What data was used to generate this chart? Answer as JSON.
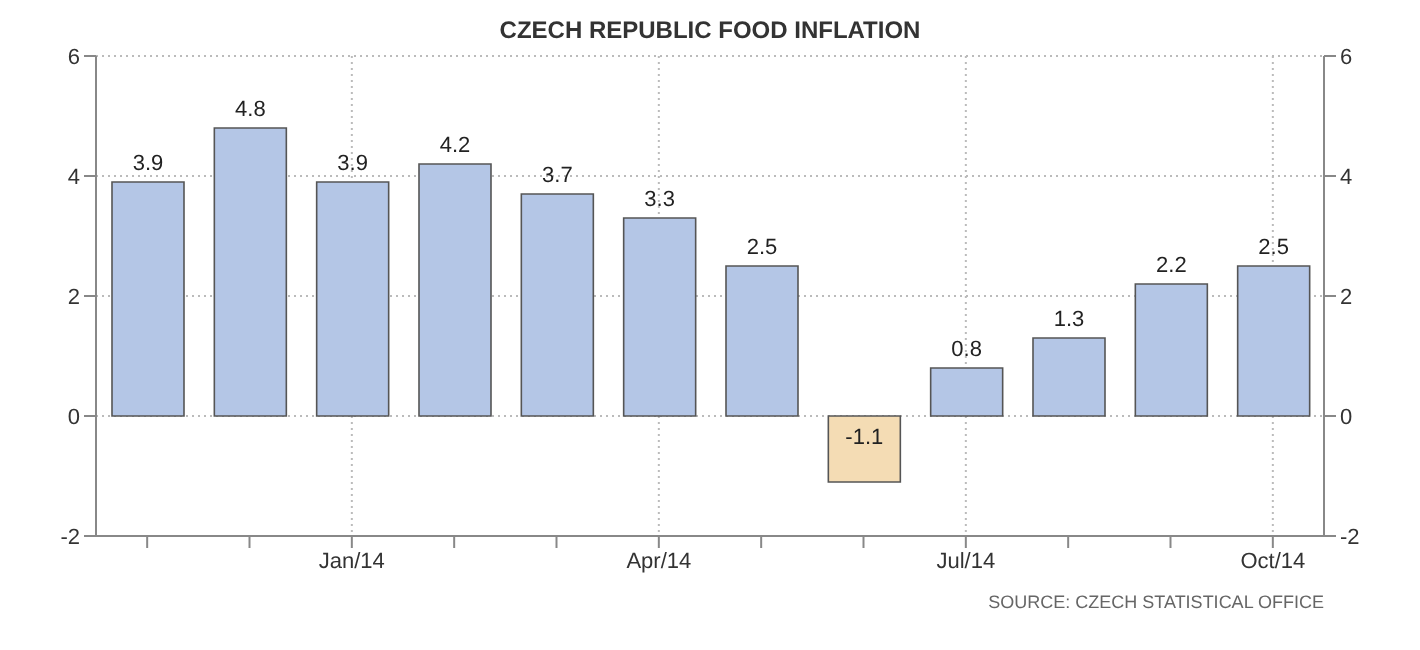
{
  "chart_data": {
    "type": "bar",
    "title": "CZECH REPUBLIC FOOD INFLATION",
    "categories": [
      null,
      null,
      "Jan/14",
      null,
      null,
      "Apr/14",
      null,
      null,
      "Jul/14",
      null,
      null,
      "Oct/14"
    ],
    "values": [
      3.9,
      4.8,
      3.9,
      4.2,
      3.7,
      3.3,
      2.5,
      -1.1,
      0.8,
      1.3,
      2.2,
      2.5
    ],
    "colors": [
      "#b4c6e6",
      "#b4c6e6",
      "#b4c6e6",
      "#b4c6e6",
      "#b4c6e6",
      "#b4c6e6",
      "#b4c6e6",
      "#f4dcb4",
      "#b4c6e6",
      "#b4c6e6",
      "#b4c6e6",
      "#b4c6e6"
    ],
    "data_labels": true,
    "ylim": [
      -2,
      6
    ],
    "yticks": [
      -2,
      0,
      2,
      4,
      6
    ],
    "y2lim": [
      -2,
      6
    ],
    "y2ticks": [
      -2,
      0,
      2,
      4,
      6
    ],
    "grid": true,
    "annotations": [
      "SOURCE: CZECH STATISTICAL OFFICE"
    ]
  }
}
